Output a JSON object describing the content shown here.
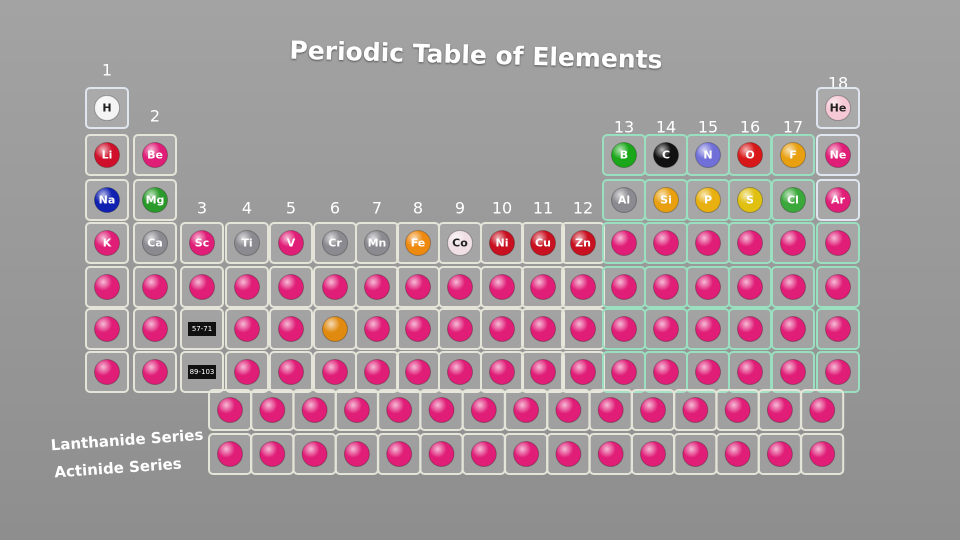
{
  "title": "Periodic Table of Elements",
  "group_numbers": [
    1,
    2,
    3,
    4,
    5,
    6,
    7,
    8,
    9,
    10,
    11,
    12,
    13,
    14,
    15,
    16,
    17,
    18
  ],
  "elements": [
    "H",
    "He",
    "Li",
    "Be",
    "B",
    "C",
    "N",
    "O",
    "F",
    "Ne",
    "Na",
    "Mg",
    "Al",
    "Si",
    "P",
    "S",
    "Cl",
    "Ar",
    "K",
    "Ca",
    "Sc",
    "Ti",
    "V",
    "Cr",
    "Mn",
    "Fe",
    "Co",
    "Ni",
    "Cu",
    "Zn"
  ],
  "series_markers": [
    "57-71",
    "89-103"
  ],
  "series_labels": [
    "Lanthanide Series",
    "Actinide Series"
  ]
}
